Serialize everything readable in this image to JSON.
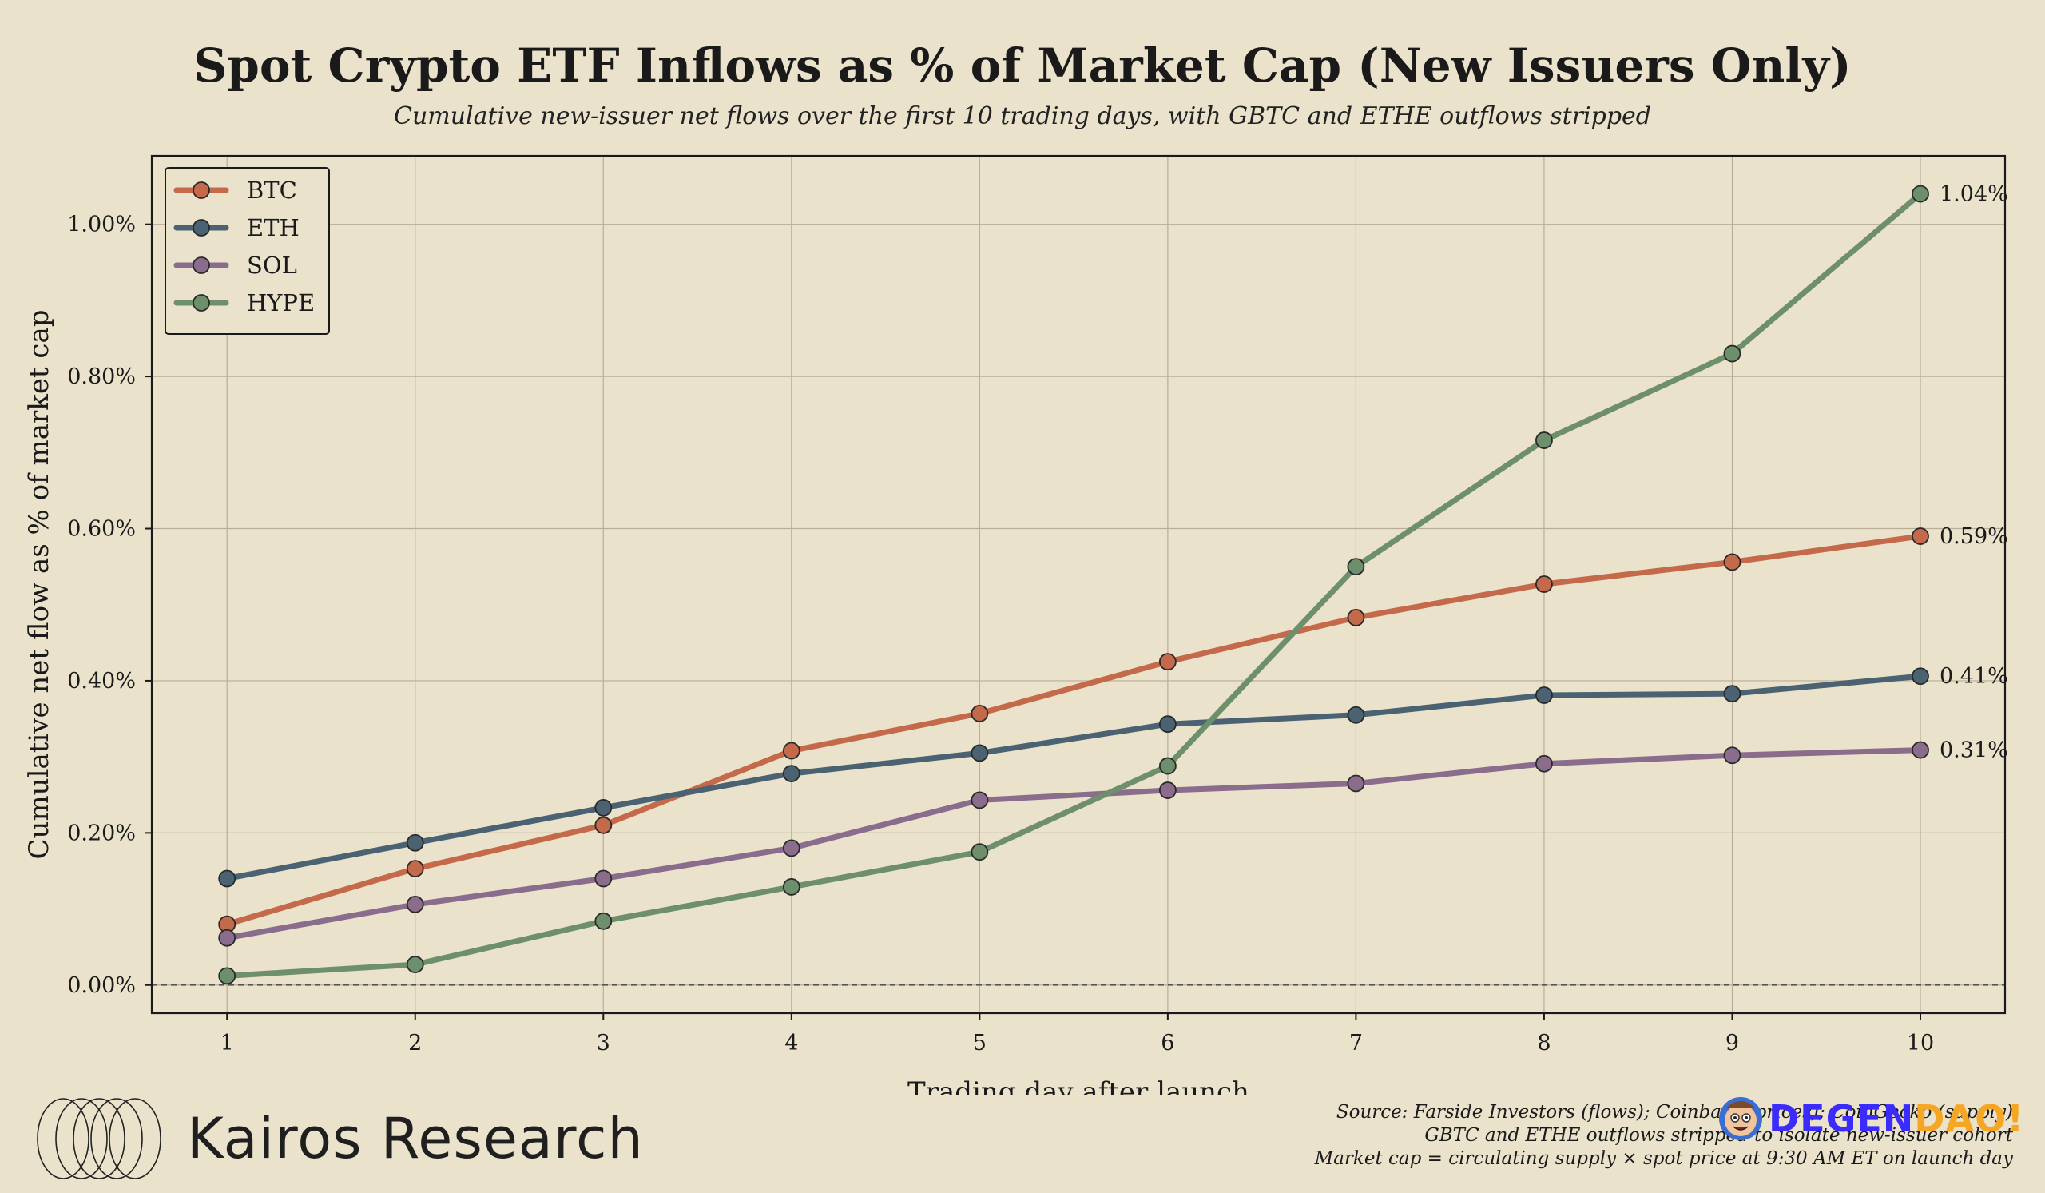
{
  "chart_data": {
    "type": "line",
    "title": "Spot Crypto ETF Inflows as % of Market Cap (New Issuers Only)",
    "subtitle": "Cumulative new-issuer net flows over the first 10 trading days, with GBTC and ETHE outflows stripped",
    "xlabel": "Trading day after launch",
    "ylabel": "Cumulative net flow as % of market cap",
    "x": [
      1,
      2,
      3,
      4,
      5,
      6,
      7,
      8,
      9,
      10
    ],
    "xlim": [
      0.6,
      10.45
    ],
    "ylim": [
      -0.037,
      1.09
    ],
    "y_ticks": [
      0.0,
      0.2,
      0.4,
      0.6,
      0.8,
      1.0
    ],
    "y_tick_labels": [
      "0.00%",
      "0.20%",
      "0.40%",
      "0.60%",
      "0.80%",
      "1.00%"
    ],
    "x_tick_labels": [
      "1",
      "2",
      "3",
      "4",
      "5",
      "6",
      "7",
      "8",
      "9",
      "10"
    ],
    "grid": true,
    "zero_line": "dashed",
    "legend_position": "top-left",
    "series": [
      {
        "name": "BTC",
        "color": "#c4694a",
        "values": [
          0.08,
          0.153,
          0.21,
          0.308,
          0.357,
          0.425,
          0.483,
          0.527,
          0.556,
          0.59
        ],
        "end_label": "0.59%"
      },
      {
        "name": "ETH",
        "color": "#4a6272",
        "values": [
          0.14,
          0.187,
          0.233,
          0.278,
          0.305,
          0.343,
          0.355,
          0.381,
          0.383,
          0.406
        ],
        "end_label": "0.41%"
      },
      {
        "name": "SOL",
        "color": "#8a6c8c",
        "values": [
          0.062,
          0.106,
          0.14,
          0.18,
          0.243,
          0.256,
          0.265,
          0.291,
          0.302,
          0.309
        ],
        "end_label": "0.31%"
      },
      {
        "name": "HYPE",
        "color": "#6e8f6c",
        "values": [
          0.012,
          0.027,
          0.084,
          0.129,
          0.175,
          0.288,
          0.55,
          0.716,
          0.83,
          1.04
        ],
        "end_label": "1.04%"
      }
    ]
  },
  "branding": {
    "name": "Kairos Research",
    "logo_icon": "overlapping-circles-logo"
  },
  "footer": {
    "lines": [
      "Source: Farside Investors (flows); Coinbase (prices); CoinGecko (supply)",
      "GBTC and ETHE outflows stripped to isolate new-issuer cohort",
      "Market cap = circulating supply × spot price at 9:30 AM ET on launch day"
    ]
  },
  "watermark": {
    "text_a": "DEGEN",
    "text_b": "DAO!",
    "icon": "cartoon-face-icon"
  }
}
